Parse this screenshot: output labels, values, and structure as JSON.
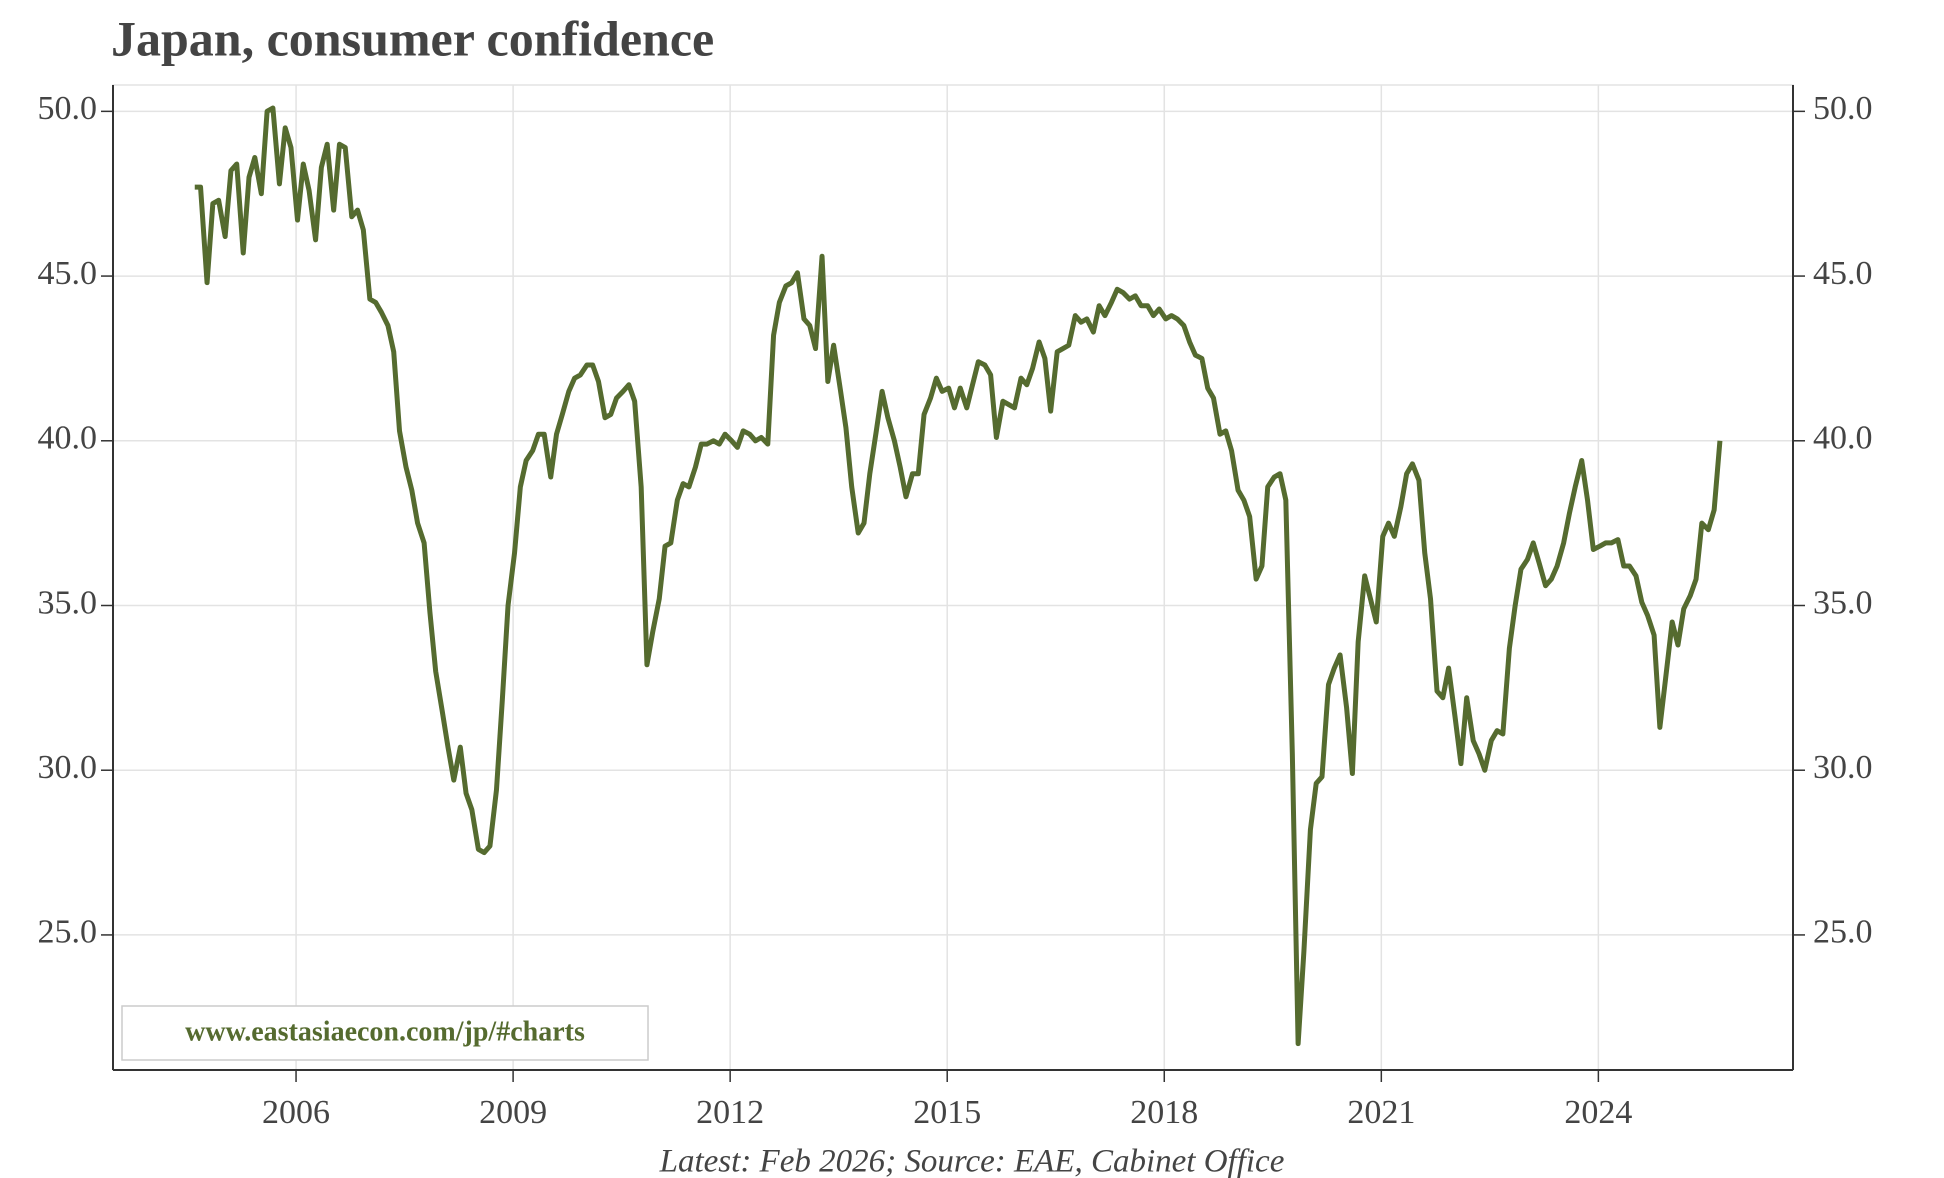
{
  "chart_data": {
    "type": "line",
    "title": "Japan, consumer confidence",
    "source": "Latest: Feb 2026; Source: EAE, Cabinet Office",
    "watermark": "www.eastasiaecon.com/jp/#charts",
    "xlim": [
      2003.47,
      2026.69
    ],
    "xticks": [
      2006,
      2009,
      2012,
      2015,
      2018,
      2021,
      2024
    ],
    "ylim": [
      20.9,
      50.8
    ],
    "yticks": [
      {
        "value": 25,
        "label": "25.0"
      },
      {
        "value": 30,
        "label": "30.0"
      },
      {
        "value": 35,
        "label": "35.0"
      },
      {
        "value": 40,
        "label": "40.0"
      },
      {
        "value": 45,
        "label": "45.0"
      },
      {
        "value": 50,
        "label": "50.0"
      }
    ],
    "grid": true,
    "x": [
      2004.6,
      2004.68,
      2004.77,
      2004.85,
      2004.93,
      2005.02,
      2005.1,
      2005.18,
      2005.27,
      2005.35,
      2005.43,
      2005.52,
      2005.6,
      2005.68,
      2005.77,
      2005.85,
      2005.93,
      2006.02,
      2006.1,
      2006.18,
      2006.27,
      2006.35,
      2006.43,
      2006.52,
      2006.6,
      2006.68,
      2006.77,
      2006.85,
      2006.93,
      2007.02,
      2007.1,
      2007.18,
      2007.27,
      2007.35,
      2007.43,
      2007.52,
      2007.6,
      2007.68,
      2007.77,
      2007.85,
      2007.93,
      2008.02,
      2008.1,
      2008.18,
      2008.27,
      2008.35,
      2008.43,
      2008.52,
      2008.6,
      2008.68,
      2008.77,
      2008.85,
      2008.93,
      2009.02,
      2009.1,
      2009.18,
      2009.27,
      2009.35,
      2009.43,
      2009.52,
      2009.6,
      2009.68,
      2009.77,
      2009.85,
      2009.93,
      2010.02,
      2010.1,
      2010.18,
      2010.27,
      2010.35,
      2010.43,
      2010.52,
      2010.6,
      2010.68,
      2010.77,
      2010.85,
      2010.93,
      2011.02,
      2011.1,
      2011.18,
      2011.27,
      2011.35,
      2011.43,
      2011.52,
      2011.6,
      2011.68,
      2011.77,
      2011.85,
      2011.93,
      2012.02,
      2012.1,
      2012.18,
      2012.27,
      2012.35,
      2012.43,
      2012.52,
      2012.6,
      2012.68,
      2012.77,
      2012.85,
      2012.93,
      2013.02,
      2013.1,
      2013.18,
      2013.27,
      2013.35,
      2013.43,
      2013.52,
      2013.6,
      2013.68,
      2013.77,
      2013.85,
      2013.93,
      2014.02,
      2014.1,
      2014.18,
      2014.27,
      2014.35,
      2014.43,
      2014.52,
      2014.6,
      2014.68,
      2014.77,
      2014.85,
      2014.93,
      2015.02,
      2015.1,
      2015.18,
      2015.27,
      2015.35,
      2015.43,
      2015.52,
      2015.6,
      2015.68,
      2015.77,
      2015.85,
      2015.93,
      2016.02,
      2016.1,
      2016.18,
      2016.27,
      2016.35,
      2016.43,
      2016.52,
      2016.6,
      2016.68,
      2016.77,
      2016.85,
      2016.93,
      2017.02,
      2017.1,
      2017.18,
      2017.27,
      2017.35,
      2017.43,
      2017.52,
      2017.6,
      2017.68,
      2017.77,
      2017.85,
      2017.93,
      2018.02,
      2018.1,
      2018.18,
      2018.27,
      2018.35,
      2018.43,
      2018.52,
      2018.6,
      2018.68,
      2018.77,
      2018.85,
      2018.93,
      2019.02,
      2019.1,
      2019.18,
      2019.27,
      2019.35,
      2019.43,
      2019.52,
      2019.6,
      2019.68,
      2019.77,
      2019.85,
      2019.93,
      2020.02,
      2020.1,
      2020.18,
      2020.27,
      2020.35,
      2020.43,
      2020.52,
      2020.6,
      2020.68,
      2020.77,
      2020.85,
      2020.93,
      2021.02,
      2021.1,
      2021.18,
      2021.27,
      2021.35,
      2021.43,
      2021.52,
      2021.6,
      2021.68,
      2021.77,
      2021.85,
      2021.93,
      2022.02,
      2022.1,
      2022.18,
      2022.27,
      2022.35,
      2022.43,
      2022.52,
      2022.6,
      2022.68,
      2022.77,
      2022.85,
      2022.93,
      2023.02,
      2023.1,
      2023.18,
      2023.27,
      2023.35,
      2023.43,
      2023.52,
      2023.6,
      2023.68,
      2023.77,
      2023.85,
      2023.93,
      2024.02,
      2024.1,
      2024.18,
      2024.27,
      2024.35,
      2024.43,
      2024.52,
      2024.6,
      2024.68,
      2024.77,
      2024.85,
      2024.93,
      2025.02,
      2025.1,
      2025.18,
      2025.27,
      2025.35,
      2025.43,
      2025.52,
      2025.6,
      2025.68
    ],
    "series": [
      {
        "name": "Consumer confidence",
        "color": "#556b2f",
        "values": [
          47.7,
          47.7,
          44.8,
          47.2,
          47.3,
          46.2,
          48.2,
          48.4,
          45.7,
          48.0,
          48.6,
          47.5,
          50.0,
          50.1,
          47.8,
          49.5,
          48.9,
          46.7,
          48.4,
          47.6,
          46.1,
          48.3,
          49.0,
          47.0,
          49.0,
          48.9,
          46.8,
          47.0,
          46.4,
          44.3,
          44.2,
          43.9,
          43.5,
          42.7,
          40.3,
          39.2,
          38.5,
          37.5,
          36.9,
          34.8,
          33.0,
          31.8,
          30.7,
          29.7,
          30.7,
          29.3,
          28.8,
          27.6,
          27.5,
          27.7,
          29.4,
          32.1,
          35.0,
          36.6,
          38.6,
          39.4,
          39.7,
          40.2,
          40.2,
          38.9,
          40.2,
          40.8,
          41.5,
          41.9,
          42.0,
          42.3,
          42.3,
          41.8,
          40.7,
          40.8,
          41.3,
          41.5,
          41.7,
          41.2,
          38.6,
          33.2,
          34.2,
          35.2,
          36.8,
          36.9,
          38.2,
          38.7,
          38.6,
          39.2,
          39.9,
          39.9,
          40.0,
          39.9,
          40.2,
          40.0,
          39.8,
          40.3,
          40.2,
          40.0,
          40.1,
          39.9,
          43.2,
          44.2,
          44.7,
          44.8,
          45.1,
          43.7,
          43.5,
          42.8,
          45.6,
          41.8,
          42.9,
          41.6,
          40.4,
          38.6,
          37.2,
          37.5,
          39.0,
          40.3,
          41.5,
          40.7,
          40.0,
          39.2,
          38.3,
          39.0,
          39.0,
          40.8,
          41.3,
          41.9,
          41.5,
          41.6,
          41.0,
          41.6,
          41.0,
          41.7,
          42.4,
          42.3,
          42.0,
          40.1,
          41.2,
          41.1,
          41.0,
          41.9,
          41.7,
          42.2,
          43.0,
          42.5,
          40.9,
          42.7,
          42.8,
          42.9,
          43.8,
          43.6,
          43.7,
          43.3,
          44.1,
          43.8,
          44.2,
          44.6,
          44.5,
          44.3,
          44.4,
          44.1,
          44.1,
          43.8,
          44.0,
          43.7,
          43.8,
          43.7,
          43.5,
          43.0,
          42.6,
          42.5,
          41.6,
          41.3,
          40.2,
          40.3,
          39.7,
          38.5,
          38.2,
          37.7,
          35.8,
          36.2,
          38.6,
          38.9,
          39.0,
          38.2,
          30.5,
          21.7,
          24.5,
          28.2,
          29.6,
          29.8,
          32.6,
          33.1,
          33.5,
          31.9,
          29.9,
          33.9,
          35.9,
          35.2,
          34.5,
          37.1,
          37.5,
          37.1,
          38.0,
          39.0,
          39.3,
          38.8,
          36.6,
          35.2,
          32.4,
          32.2,
          33.1,
          31.6,
          30.2,
          32.2,
          30.9,
          30.5,
          30.0,
          30.9,
          31.2,
          31.1,
          33.7,
          35.0,
          36.1,
          36.4,
          36.9,
          36.3,
          35.6,
          35.8,
          36.2,
          36.9,
          37.8,
          38.6,
          39.4,
          38.2,
          36.7,
          36.8,
          36.9,
          36.9,
          37.0,
          36.2,
          36.2,
          35.9,
          35.1,
          34.7,
          34.1,
          31.3,
          32.8,
          34.5,
          33.8,
          34.9,
          35.3,
          35.8,
          37.5,
          37.3,
          37.9,
          40.0
        ]
      }
    ]
  }
}
